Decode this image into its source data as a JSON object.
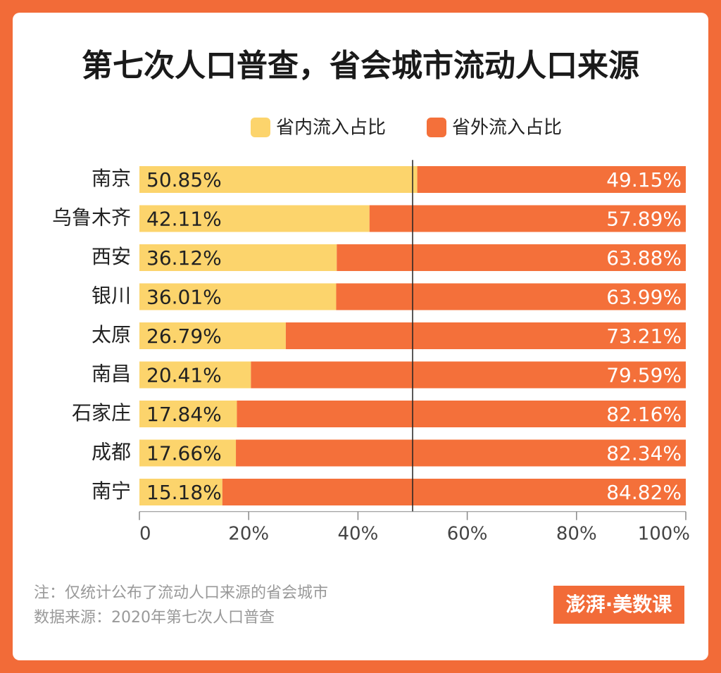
{
  "chart_data": {
    "type": "stacked-bar-horizontal",
    "title": "第七次人口普查，省会城市流动人口来源",
    "categories": [
      "南京",
      "乌鲁木齐",
      "西安",
      "银川",
      "太原",
      "南昌",
      "石家庄",
      "成都",
      "南宁"
    ],
    "series": [
      {
        "name": "省内流入占比",
        "color": "#fcd46c",
        "values": [
          50.85,
          42.11,
          36.12,
          36.01,
          26.79,
          20.41,
          17.84,
          17.66,
          15.18
        ],
        "value_labels": [
          "50.85%",
          "42.11%",
          "36.12%",
          "36.01%",
          "26.79%",
          "20.41%",
          "17.84%",
          "17.66%",
          "15.18%"
        ]
      },
      {
        "name": "省外流入占比",
        "color": "#f4703a",
        "values": [
          49.15,
          57.89,
          63.88,
          63.99,
          73.21,
          79.59,
          82.16,
          82.34,
          84.82
        ],
        "value_labels": [
          "49.15%",
          "57.89%",
          "63.88%",
          "63.99%",
          "73.21%",
          "79.59%",
          "82.16%",
          "82.34%",
          "84.82%"
        ]
      }
    ],
    "xlim": [
      0,
      100
    ],
    "xticks": [
      0,
      {
        "value": 20,
        "label": "20%"
      },
      {
        "value": 40,
        "label": "40%"
      },
      {
        "value": 60,
        "label": "60%"
      },
      {
        "value": 80,
        "label": "80%"
      },
      {
        "value": 100,
        "label": "100%"
      }
    ],
    "reference_x": 50,
    "legend": "top",
    "notes": [
      "注：仅统计公布了流动人口来源的省会城市",
      "数据来源：2020年第七次人口普查"
    ],
    "logo": "澎湃·美数课"
  }
}
